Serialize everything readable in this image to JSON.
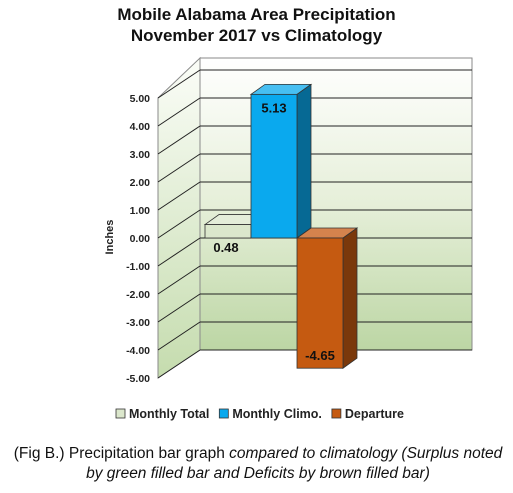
{
  "chart_data": {
    "type": "bar",
    "title_lines": [
      "Mobile Alabama Area Precipitation",
      "November 2017 vs Climatology"
    ],
    "ylabel": "Inches",
    "ylim": [
      -5,
      5
    ],
    "yticks": [
      "5.00",
      "4.00",
      "3.00",
      "2.00",
      "1.00",
      "0.00",
      "-1.00",
      "-2.00",
      "-3.00",
      "-4.00",
      "-5.00"
    ],
    "ytick_values": [
      5,
      4,
      3,
      2,
      1,
      0,
      -1,
      -2,
      -3,
      -4,
      -5
    ],
    "series": [
      {
        "name": "Monthly Total",
        "value": 0.48,
        "label": "0.48",
        "color": "#dbe7cc"
      },
      {
        "name": "Monthly Climo.",
        "value": 5.13,
        "label": "5.13",
        "color": "#0aa9ee"
      },
      {
        "name": "Departure",
        "value": -4.65,
        "label": "-4.65",
        "color": "#c55a11"
      }
    ],
    "grid": true,
    "legend_position": "bottom"
  },
  "caption": {
    "plain": "(Fig B.) Precipitation bar graph ",
    "italic": "compared to climatology (Surplus noted by green filled bar and Deficits by brown filled bar)"
  }
}
